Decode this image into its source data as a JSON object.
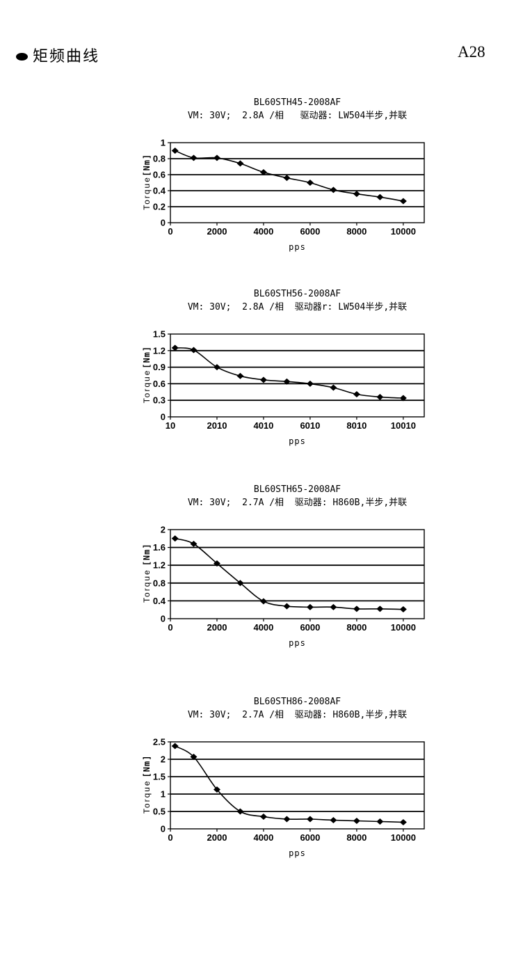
{
  "page": {
    "heading": "矩频曲线",
    "page_number": "A28"
  },
  "chart_data": [
    {
      "type": "line",
      "title": "BL60STH45-2008AF",
      "subtitle": "VM: 30V;  2.8A /相   驱动器: LW504半步,并联",
      "xlabel": "pps",
      "ylabel": "Torque",
      "ylabel_unit": "[Nm]",
      "x": [
        200,
        1000,
        2000,
        3000,
        4000,
        5000,
        6000,
        7000,
        8000,
        9000,
        10000
      ],
      "values": [
        0.9,
        0.81,
        0.81,
        0.74,
        0.63,
        0.56,
        0.5,
        0.41,
        0.36,
        0.32,
        0.27
      ],
      "xlim": [
        0,
        10900
      ],
      "ylim": [
        0,
        1
      ],
      "xticks": [
        0,
        2000,
        4000,
        6000,
        8000,
        10000
      ],
      "yticks": [
        0,
        0.2,
        0.4,
        0.6,
        0.8,
        1
      ],
      "grid": "horizontal",
      "legend": "none",
      "marker": "diamond",
      "color": "#000000"
    },
    {
      "type": "line",
      "title": "BL60STH56-2008AF",
      "subtitle": "VM: 30V;  2.8A /相  驱动器r: LW504半步,并联",
      "xlabel": "pps",
      "ylabel": "Torque",
      "ylabel_unit": "[Nm]",
      "x": [
        210,
        1010,
        2010,
        3010,
        4010,
        5010,
        6010,
        7010,
        8010,
        9010,
        10010
      ],
      "values": [
        1.25,
        1.21,
        0.9,
        0.74,
        0.67,
        0.64,
        0.6,
        0.53,
        0.41,
        0.36,
        0.34
      ],
      "xlim": [
        10,
        10910
      ],
      "ylim": [
        0,
        1.5
      ],
      "xticks": [
        10,
        2010,
        4010,
        6010,
        8010,
        10010
      ],
      "yticks": [
        0,
        0.3,
        0.6,
        0.9,
        1.2,
        1.5
      ],
      "grid": "horizontal",
      "legend": "none",
      "marker": "diamond",
      "color": "#000000"
    },
    {
      "type": "line",
      "title": "BL60STH65-2008AF",
      "subtitle": "VM: 30V;  2.7A /相  驱动器: H860B,半步,并联",
      "xlabel": "pps",
      "ylabel": "Torque",
      "ylabel_unit": "[Nm]",
      "x": [
        200,
        1000,
        2000,
        3000,
        4000,
        5000,
        6000,
        7000,
        8000,
        9000,
        10000
      ],
      "values": [
        1.8,
        1.68,
        1.24,
        0.8,
        0.39,
        0.28,
        0.26,
        0.26,
        0.22,
        0.22,
        0.21
      ],
      "xlim": [
        0,
        10900
      ],
      "ylim": [
        0,
        2
      ],
      "xticks": [
        0,
        2000,
        4000,
        6000,
        8000,
        10000
      ],
      "yticks": [
        0,
        0.4,
        0.8,
        1.2,
        1.6,
        2
      ],
      "grid": "horizontal",
      "legend": "none",
      "marker": "diamond",
      "color": "#000000"
    },
    {
      "type": "line",
      "title": "BL60STH86-2008AF",
      "subtitle": "VM: 30V;  2.7A /相  驱动器: H860B,半步,并联",
      "xlabel": "pps",
      "ylabel": "Torque",
      "ylabel_unit": "[Nm]",
      "x": [
        200,
        1000,
        2000,
        3000,
        4000,
        5000,
        6000,
        7000,
        8000,
        9000,
        10000
      ],
      "values": [
        2.38,
        2.07,
        1.13,
        0.5,
        0.35,
        0.28,
        0.28,
        0.25,
        0.23,
        0.21,
        0.19
      ],
      "xlim": [
        0,
        10900
      ],
      "ylim": [
        0,
        2.5
      ],
      "xticks": [
        0,
        2000,
        4000,
        6000,
        8000,
        10000
      ],
      "yticks": [
        0,
        0.5,
        1,
        1.5,
        2,
        2.5
      ],
      "grid": "horizontal",
      "legend": "none",
      "marker": "diamond",
      "color": "#000000"
    }
  ]
}
